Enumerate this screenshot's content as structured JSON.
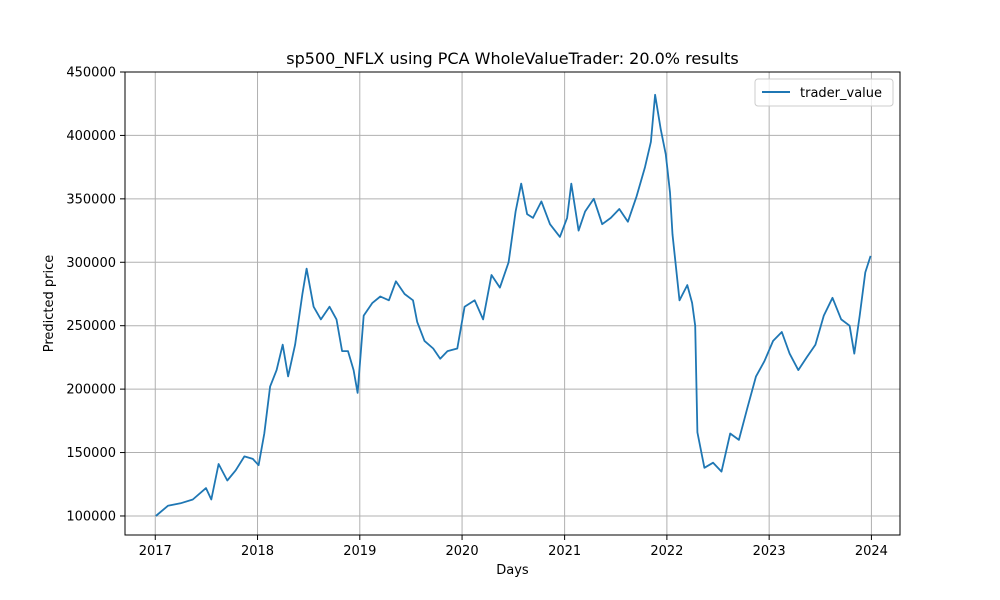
{
  "chart_data": {
    "type": "line",
    "title": "sp500_NFLX using PCA WholeValueTrader: 20.0% results",
    "xlabel": "Days",
    "ylabel": "Predicted price",
    "xlim": [
      "2016-09-15",
      "2024-04-12"
    ],
    "ylim": [
      85000,
      450000
    ],
    "x_ticks": [
      "2017-01-01",
      "2018-01-01",
      "2019-01-01",
      "2020-01-01",
      "2021-01-01",
      "2022-01-01",
      "2023-01-01",
      "2024-01-01"
    ],
    "x_tick_labels": [
      "2017",
      "2018",
      "2019",
      "2020",
      "2021",
      "2022",
      "2023",
      "2024"
    ],
    "y_ticks": [
      100000,
      150000,
      200000,
      250000,
      300000,
      350000,
      400000,
      450000
    ],
    "y_tick_labels": [
      "100000",
      "150000",
      "200000",
      "250000",
      "300000",
      "350000",
      "400000",
      "450000"
    ],
    "grid": true,
    "legend_position": "top-right",
    "series": [
      {
        "name": "trader_value",
        "color": "#1f77b4",
        "x": [
          "2017-01-03",
          "2017-02-15",
          "2017-04-01",
          "2017-05-15",
          "2017-07-01",
          "2017-07-20",
          "2017-08-15",
          "2017-09-15",
          "2017-10-15",
          "2017-11-15",
          "2017-12-15",
          "2018-01-05",
          "2018-01-25",
          "2018-02-15",
          "2018-03-10",
          "2018-04-01",
          "2018-04-20",
          "2018-05-15",
          "2018-06-10",
          "2018-06-25",
          "2018-07-20",
          "2018-08-15",
          "2018-09-15",
          "2018-10-10",
          "2018-10-30",
          "2018-11-20",
          "2018-12-10",
          "2018-12-24",
          "2019-01-15",
          "2019-02-15",
          "2019-03-15",
          "2019-04-15",
          "2019-05-10",
          "2019-06-10",
          "2019-07-10",
          "2019-07-25",
          "2019-08-20",
          "2019-09-20",
          "2019-10-15",
          "2019-11-10",
          "2019-12-15",
          "2020-01-10",
          "2020-02-15",
          "2020-03-16",
          "2020-04-15",
          "2020-05-15",
          "2020-06-15",
          "2020-07-10",
          "2020-07-30",
          "2020-08-20",
          "2020-09-10",
          "2020-10-10",
          "2020-11-10",
          "2020-12-15",
          "2021-01-10",
          "2021-01-25",
          "2021-02-20",
          "2021-03-15",
          "2021-04-15",
          "2021-05-15",
          "2021-06-15",
          "2021-07-15",
          "2021-08-15",
          "2021-09-15",
          "2021-10-15",
          "2021-11-05",
          "2021-11-20",
          "2021-12-10",
          "2021-12-28",
          "2022-01-12",
          "2022-01-21",
          "2022-02-15",
          "2022-03-15",
          "2022-04-01",
          "2022-04-12",
          "2022-04-20",
          "2022-05-15",
          "2022-06-15",
          "2022-07-15",
          "2022-08-15",
          "2022-09-15",
          "2022-10-15",
          "2022-11-15",
          "2022-12-15",
          "2023-01-15",
          "2023-02-15",
          "2023-03-15",
          "2023-04-15",
          "2023-05-15",
          "2023-06-15",
          "2023-07-15",
          "2023-08-15",
          "2023-09-15",
          "2023-10-15",
          "2023-11-01",
          "2023-11-20",
          "2023-12-10",
          "2023-12-29"
        ],
        "values": [
          100000,
          108000,
          110000,
          113000,
          122000,
          113000,
          141000,
          128000,
          136000,
          147000,
          145000,
          140000,
          165000,
          202000,
          215000,
          235000,
          210000,
          235000,
          275000,
          295000,
          265000,
          255000,
          265000,
          255000,
          230000,
          230000,
          215000,
          197000,
          258000,
          268000,
          273000,
          270000,
          285000,
          275000,
          270000,
          253000,
          238000,
          232000,
          224000,
          230000,
          232000,
          265000,
          270000,
          255000,
          290000,
          280000,
          300000,
          340000,
          362000,
          338000,
          335000,
          348000,
          330000,
          320000,
          335000,
          362000,
          325000,
          340000,
          350000,
          330000,
          335000,
          342000,
          332000,
          352000,
          375000,
          395000,
          432000,
          405000,
          385000,
          355000,
          322000,
          270000,
          282000,
          268000,
          250000,
          166000,
          138000,
          142000,
          135000,
          165000,
          160000,
          185000,
          210000,
          222000,
          238000,
          245000,
          228000,
          215000,
          225000,
          235000,
          258000,
          272000,
          255000,
          250000,
          228000,
          258000,
          292000,
          305000
        ]
      }
    ]
  }
}
